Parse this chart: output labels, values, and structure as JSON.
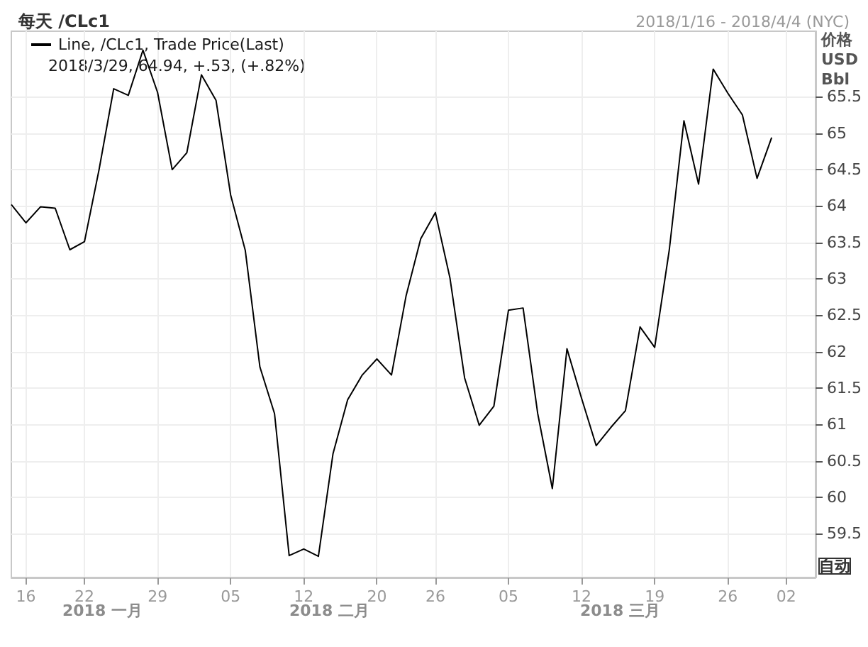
{
  "chart_data": {
    "type": "line",
    "title": "每天 /CLc1",
    "subtitle": "2018/1/16 - 2018/4/4 (NYC)",
    "ylabel": "价格 USD Bbl",
    "categories": [
      null,
      "16",
      null,
      null,
      null,
      "22",
      null,
      null,
      null,
      null,
      "29",
      null,
      null,
      null,
      null,
      "05",
      null,
      null,
      null,
      null,
      "12",
      null,
      null,
      null,
      null,
      "20",
      null,
      null,
      null,
      "26",
      null,
      null,
      null,
      null,
      "05",
      null,
      null,
      null,
      null,
      "12",
      null,
      null,
      null,
      null,
      "19",
      null,
      null,
      null,
      null,
      "26",
      null,
      null,
      null,
      "02",
      null,
      null
    ],
    "series": [
      {
        "name": "Line, /CLc1, Trade Price(Last)",
        "color": "#000000",
        "values": [
          64.02,
          63.77,
          63.99,
          63.97,
          63.4,
          63.51,
          64.5,
          65.61,
          65.52,
          66.14,
          65.56,
          64.5,
          64.73,
          65.8,
          65.45,
          64.15,
          63.39,
          61.79,
          61.15,
          59.2,
          59.29,
          59.19,
          60.6,
          61.34,
          61.68,
          61.9,
          61.68,
          62.77,
          63.55,
          63.91,
          63.01,
          61.64,
          60.99,
          61.25,
          62.57,
          62.6,
          61.15,
          60.12,
          62.04,
          61.36,
          60.71,
          60.96,
          61.19,
          62.34,
          62.06,
          63.4,
          65.17,
          64.3,
          65.88,
          65.55,
          65.25,
          64.38,
          64.94,
          null,
          null,
          null
        ]
      }
    ],
    "ylim": [
      58.9,
      66.4
    ],
    "yticks": [
      59.5,
      60,
      60.5,
      61,
      61.5,
      62,
      62.5,
      63,
      63.5,
      64,
      64.5,
      65,
      65.5
    ],
    "grid": true,
    "legend": "top left",
    "marker": "none",
    "line_style": "solid",
    "annotations": [
      "2018/3/29, 64.94, +.53, (+.82%)",
      "2018 一月",
      "2018 二月",
      "2018 三月",
      "自动"
    ]
  }
}
